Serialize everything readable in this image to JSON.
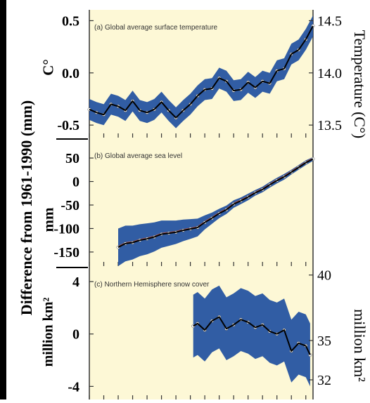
{
  "left_axis_label": "Difference from 1961-1990 (mm)",
  "chart_data": [
    {
      "type": "line",
      "panel": "a",
      "title": "(a) Global average surface temperature",
      "ylabel_left": "C°",
      "ylabel_right": "Temperature (C°)",
      "yticks_left": [
        "0.5",
        "0.0",
        "-0.5"
      ],
      "ytick_values_left": [
        0.5,
        0.0,
        -0.5
      ],
      "yticks_right": [
        "14.5",
        "14.0",
        "13.5"
      ],
      "ytick_values_right": [
        14.5,
        14.0,
        13.5
      ],
      "ylim_left": [
        -0.62,
        0.55
      ],
      "ylim_right": [
        13.38,
        14.55
      ],
      "xlim": [
        1850,
        2005
      ],
      "colors": {
        "band": "#1f4fa0",
        "line": "#000000",
        "points": "#ffffff",
        "background": "#fdf8d6"
      },
      "x": [
        1850,
        1855,
        1860,
        1865,
        1870,
        1875,
        1880,
        1885,
        1890,
        1895,
        1900,
        1905,
        1910,
        1915,
        1920,
        1925,
        1930,
        1935,
        1940,
        1945,
        1950,
        1955,
        1960,
        1965,
        1970,
        1975,
        1980,
        1985,
        1990,
        1995,
        2000,
        2005
      ],
      "y": [
        -0.35,
        -0.38,
        -0.4,
        -0.3,
        -0.32,
        -0.36,
        -0.27,
        -0.36,
        -0.38,
        -0.35,
        -0.28,
        -0.36,
        -0.43,
        -0.36,
        -0.3,
        -0.22,
        -0.16,
        -0.15,
        -0.05,
        -0.08,
        -0.17,
        -0.16,
        -0.09,
        -0.14,
        -0.08,
        -0.1,
        0.02,
        0.04,
        0.18,
        0.22,
        0.32,
        0.45
      ],
      "band_halfwidth": 0.1
    },
    {
      "type": "line",
      "panel": "b",
      "title": "(b) Global average sea level",
      "ylabel_left": "mm",
      "yticks_left": [
        "50",
        "0",
        "-50",
        "-100",
        "-150"
      ],
      "ytick_values_left": [
        50,
        0,
        -50,
        -100,
        -150
      ],
      "ylim_left": [
        -180,
        80
      ],
      "xlim": [
        1850,
        2005
      ],
      "colors": {
        "band": "#1f4fa0",
        "line": "#000000",
        "points": "#ffffff",
        "tide_gauge": "#e8603c"
      },
      "x": [
        1870,
        1875,
        1880,
        1885,
        1890,
        1895,
        1900,
        1905,
        1910,
        1915,
        1920,
        1925,
        1930,
        1935,
        1940,
        1945,
        1950,
        1955,
        1960,
        1965,
        1970,
        1975,
        1980,
        1985,
        1990,
        1995,
        2000,
        2005
      ],
      "y": [
        -140,
        -132,
        -130,
        -125,
        -122,
        -118,
        -112,
        -110,
        -108,
        -104,
        -101,
        -98,
        -87,
        -78,
        -68,
        -60,
        -48,
        -41,
        -33,
        -24,
        -17,
        -7,
        2,
        10,
        20,
        30,
        40,
        48
      ],
      "band_halfwidth": [
        40,
        38,
        36,
        34,
        33,
        31,
        29,
        27,
        25,
        23,
        21,
        19,
        15,
        12,
        10,
        9,
        8,
        7,
        7,
        6,
        6,
        6,
        6,
        6,
        5,
        5,
        5,
        4
      ]
    },
    {
      "type": "line",
      "panel": "c",
      "title": "(c) Northern Hemisphere snow cover",
      "ylabel_left": "million km²",
      "ylabel_right": "million km²",
      "yticks_left": [
        "4",
        "0",
        "-4"
      ],
      "ytick_values_left": [
        4,
        0,
        -4
      ],
      "yticks_right": [
        "40",
        "35",
        "32"
      ],
      "ytick_values_right": [
        40,
        35,
        32
      ],
      "ylim_left": [
        -5,
        4.7
      ],
      "xlim": [
        1850,
        2005
      ],
      "colors": {
        "band": "#1f4fa0",
        "line": "#000000",
        "points": "#ffffff"
      },
      "x": [
        1922,
        1925,
        1930,
        1935,
        1940,
        1945,
        1950,
        1955,
        1960,
        1965,
        1970,
        1975,
        1980,
        1985,
        1990,
        1995,
        2000,
        2003
      ],
      "y": [
        0.6,
        0.8,
        0.3,
        1.0,
        1.3,
        0.4,
        0.7,
        1.1,
        0.9,
        0.5,
        0.7,
        0.2,
        0.0,
        0.3,
        -1.3,
        -0.7,
        -0.9,
        -1.6
      ],
      "band_halfwidth": 2.4
    }
  ]
}
